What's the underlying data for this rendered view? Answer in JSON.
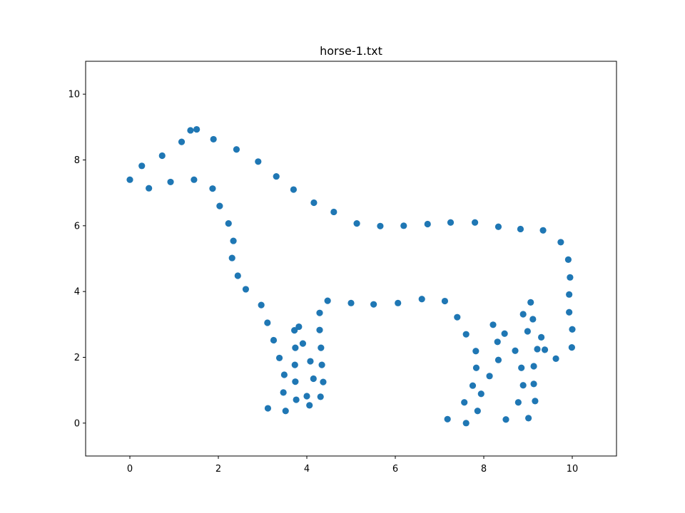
{
  "chart_data": {
    "type": "scatter",
    "title": "horse-1.txt",
    "xlabel": "",
    "ylabel": "",
    "xlim": [
      -1,
      11
    ],
    "ylim": [
      -1,
      11
    ],
    "xticks": [
      0,
      2,
      4,
      6,
      8,
      10
    ],
    "yticks": [
      0,
      2,
      4,
      6,
      8,
      10
    ],
    "xtick_labels": [
      "0",
      "2",
      "4",
      "6",
      "8",
      "10"
    ],
    "ytick_labels": [
      "0",
      "2",
      "4",
      "6",
      "8",
      "10"
    ],
    "grid": false,
    "marker_color": "#1f77b4",
    "points": [
      [
        0.0,
        7.4
      ],
      [
        0.27,
        7.82
      ],
      [
        0.43,
        7.14
      ],
      [
        0.73,
        8.13
      ],
      [
        0.92,
        7.33
      ],
      [
        1.17,
        8.55
      ],
      [
        1.37,
        8.9
      ],
      [
        1.45,
        7.4
      ],
      [
        1.51,
        8.93
      ],
      [
        1.87,
        7.13
      ],
      [
        1.89,
        8.63
      ],
      [
        2.03,
        6.6
      ],
      [
        2.23,
        6.07
      ],
      [
        2.31,
        5.02
      ],
      [
        2.34,
        5.54
      ],
      [
        2.41,
        8.32
      ],
      [
        2.44,
        4.48
      ],
      [
        2.62,
        4.07
      ],
      [
        2.9,
        7.95
      ],
      [
        2.97,
        3.59
      ],
      [
        3.11,
        3.05
      ],
      [
        3.12,
        0.45
      ],
      [
        3.25,
        2.52
      ],
      [
        3.31,
        7.5
      ],
      [
        3.38,
        1.98
      ],
      [
        3.47,
        0.93
      ],
      [
        3.49,
        1.47
      ],
      [
        3.52,
        0.37
      ],
      [
        3.7,
        7.1
      ],
      [
        3.72,
        2.82
      ],
      [
        3.73,
        1.77
      ],
      [
        3.74,
        1.26
      ],
      [
        3.74,
        2.29
      ],
      [
        3.76,
        0.71
      ],
      [
        3.82,
        2.93
      ],
      [
        3.91,
        2.42
      ],
      [
        4.0,
        0.82
      ],
      [
        4.06,
        0.54
      ],
      [
        4.08,
        1.88
      ],
      [
        4.15,
        1.35
      ],
      [
        4.16,
        6.7
      ],
      [
        4.29,
        3.35
      ],
      [
        4.29,
        2.83
      ],
      [
        4.31,
        0.8
      ],
      [
        4.32,
        2.29
      ],
      [
        4.34,
        1.77
      ],
      [
        4.37,
        1.25
      ],
      [
        4.47,
        3.72
      ],
      [
        4.61,
        6.42
      ],
      [
        5.0,
        3.65
      ],
      [
        5.13,
        6.07
      ],
      [
        5.51,
        3.61
      ],
      [
        5.66,
        5.99
      ],
      [
        6.06,
        3.65
      ],
      [
        6.19,
        6.0
      ],
      [
        6.6,
        3.77
      ],
      [
        6.73,
        6.05
      ],
      [
        7.12,
        3.71
      ],
      [
        7.18,
        0.12
      ],
      [
        7.25,
        6.1
      ],
      [
        7.4,
        3.22
      ],
      [
        7.56,
        0.63
      ],
      [
        7.6,
        2.7
      ],
      [
        7.6,
        0.0
      ],
      [
        7.75,
        1.14
      ],
      [
        7.8,
        6.1
      ],
      [
        7.82,
        2.19
      ],
      [
        7.83,
        1.68
      ],
      [
        7.86,
        0.37
      ],
      [
        7.94,
        0.89
      ],
      [
        8.13,
        1.43
      ],
      [
        8.21,
        2.99
      ],
      [
        8.31,
        2.47
      ],
      [
        8.33,
        1.92
      ],
      [
        8.33,
        5.97
      ],
      [
        8.47,
        2.72
      ],
      [
        8.5,
        0.11
      ],
      [
        8.71,
        2.2
      ],
      [
        8.78,
        0.63
      ],
      [
        8.83,
        5.9
      ],
      [
        8.85,
        1.68
      ],
      [
        8.89,
        1.15
      ],
      [
        8.89,
        3.31
      ],
      [
        8.99,
        2.79
      ],
      [
        9.01,
        0.15
      ],
      [
        9.06,
        3.67
      ],
      [
        9.11,
        3.16
      ],
      [
        9.13,
        1.73
      ],
      [
        9.13,
        1.19
      ],
      [
        9.16,
        0.67
      ],
      [
        9.21,
        2.25
      ],
      [
        9.3,
        2.61
      ],
      [
        9.34,
        5.86
      ],
      [
        9.38,
        2.23
      ],
      [
        9.63,
        1.96
      ],
      [
        9.74,
        5.5
      ],
      [
        9.91,
        4.97
      ],
      [
        9.93,
        3.91
      ],
      [
        9.93,
        3.37
      ],
      [
        9.95,
        4.43
      ],
      [
        9.99,
        2.3
      ],
      [
        10.0,
        2.85
      ]
    ]
  }
}
